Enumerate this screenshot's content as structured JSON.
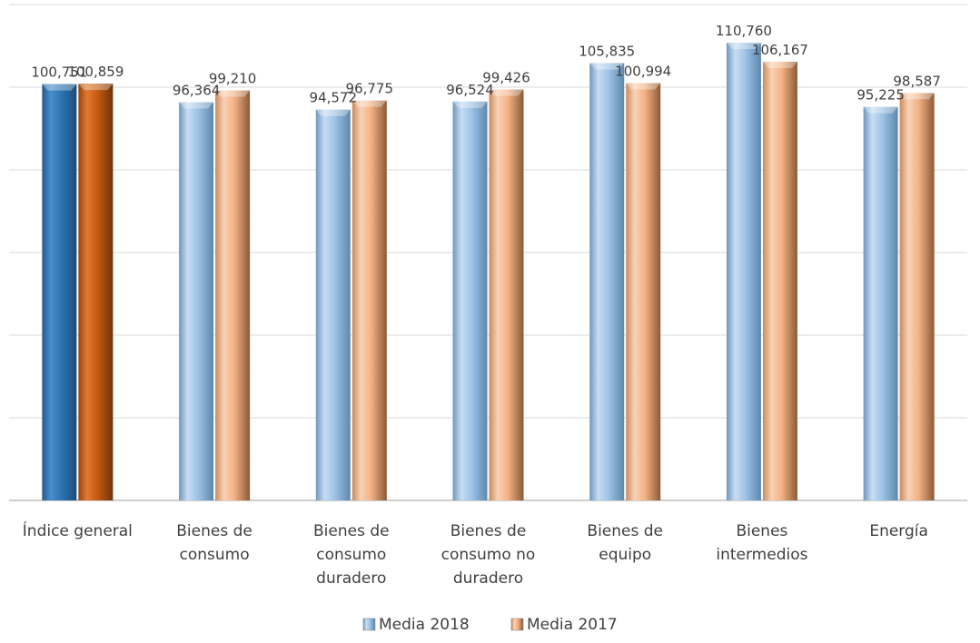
{
  "chart_data": {
    "type": "bar",
    "categories": [
      "Índice general",
      "Bienes de consumo",
      "Bienes de consumo duradero",
      "Bienes de consumo no duradero",
      "Bienes de equipo",
      "Bienes intermedios",
      "Energía"
    ],
    "category_lines": [
      [
        "Índice general"
      ],
      [
        "Bienes de",
        "consumo"
      ],
      [
        "Bienes de",
        "consumo",
        "duradero"
      ],
      [
        "Bienes de",
        "consumo no",
        "duradero"
      ],
      [
        "Bienes de",
        "equipo"
      ],
      [
        "Bienes",
        "intermedios"
      ],
      [
        "Energía"
      ]
    ],
    "series": [
      {
        "name": "Media 2018",
        "values": [
          100.751,
          96.364,
          94.572,
          96.524,
          105.835,
          110.76,
          95.225
        ],
        "labels": [
          "100,751",
          "96,364",
          "94,572",
          "96,524",
          "105,835",
          "110,760",
          "95,225"
        ],
        "color": "#9dc3e6",
        "highlight_color": "#2e75b6"
      },
      {
        "name": "Media 2017",
        "values": [
          100.859,
          99.21,
          96.775,
          99.426,
          100.994,
          106.167,
          98.587
        ],
        "labels": [
          "100,859",
          "99,210",
          "96,775",
          "99,426",
          "100,994",
          "106,167",
          "98,587"
        ],
        "color": "#f4b183",
        "highlight_color": "#c55a11"
      }
    ],
    "highlighted_category": "Índice general",
    "ylim": [
      0,
      120
    ],
    "ytick_step": 20,
    "grid": true,
    "legend": "bottom",
    "title": "",
    "xlabel": "",
    "ylabel": ""
  }
}
